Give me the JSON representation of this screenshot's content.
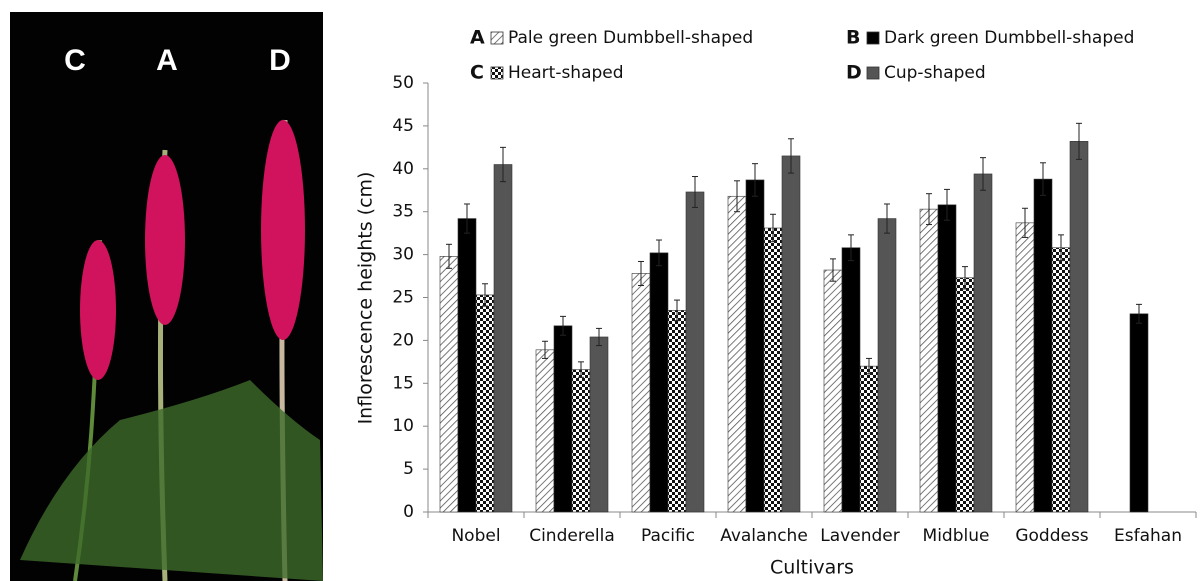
{
  "photo_labels": [
    "C",
    "A",
    "D"
  ],
  "chart_data": {
    "type": "bar",
    "x_label": "Cultivars",
    "y_label": "Inflorescence heights (cm)",
    "categories": [
      "Nobel",
      "Cinderella",
      "Pacific",
      "Avalanche",
      "Lavender",
      "Midblue",
      "Goddess",
      "Esfahan"
    ],
    "ylim": [
      0,
      50
    ],
    "yticks": [
      0,
      5,
      10,
      15,
      20,
      25,
      30,
      35,
      40,
      45,
      50
    ],
    "series": [
      {
        "key": "A",
        "name": "Pale green Dumbbell-shaped",
        "color": "hatch",
        "values": [
          29.8,
          18.9,
          27.8,
          36.8,
          28.2,
          35.3,
          33.7,
          null
        ],
        "errors": [
          1.4,
          1.0,
          1.4,
          1.8,
          1.3,
          1.8,
          1.7,
          null
        ]
      },
      {
        "key": "B",
        "name": "Dark green Dumbbell-shaped",
        "color": "#000000",
        "values": [
          34.2,
          21.7,
          30.2,
          38.7,
          30.8,
          35.8,
          38.8,
          23.1
        ],
        "errors": [
          1.7,
          1.1,
          1.5,
          1.9,
          1.5,
          1.8,
          1.9,
          1.1
        ]
      },
      {
        "key": "C",
        "name": "Heart-shaped",
        "color": "checker",
        "values": [
          25.3,
          16.6,
          23.5,
          33.1,
          17.0,
          27.3,
          30.8,
          null
        ],
        "errors": [
          1.3,
          0.9,
          1.2,
          1.6,
          0.9,
          1.3,
          1.5,
          null
        ]
      },
      {
        "key": "D",
        "name": "Cup-shaped",
        "color": "#555555",
        "values": [
          40.5,
          20.4,
          37.3,
          41.5,
          34.2,
          39.4,
          43.2,
          null
        ],
        "errors": [
          2.0,
          1.0,
          1.8,
          2.0,
          1.7,
          1.9,
          2.1,
          null
        ]
      }
    ]
  }
}
